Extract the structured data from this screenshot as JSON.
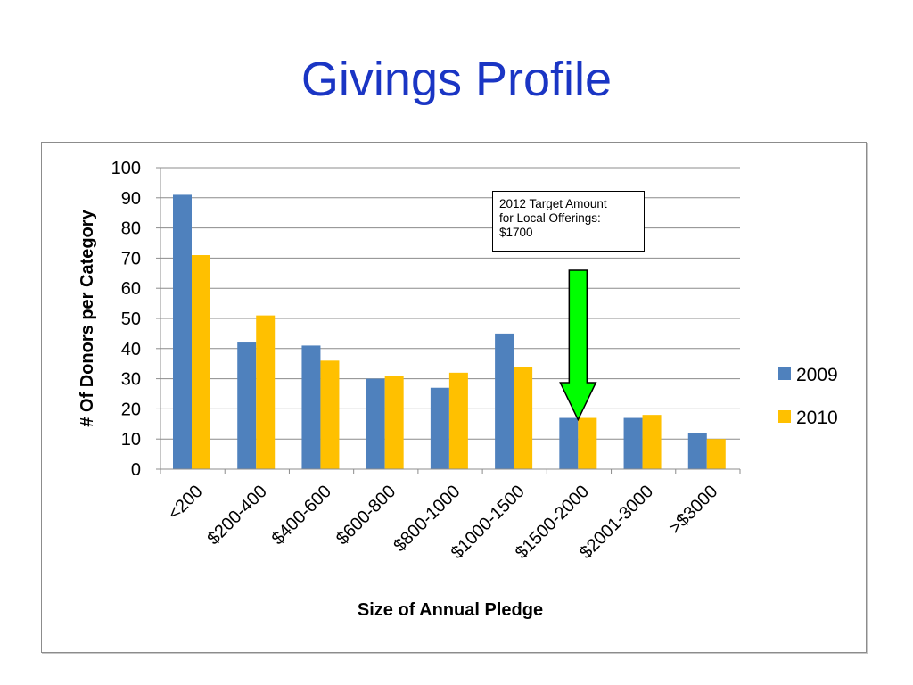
{
  "slide": {
    "title": "Givings Profile"
  },
  "callout": {
    "lines": [
      "2012 Target Amount",
      "for Local Offerings:",
      "$1700"
    ]
  },
  "colors": {
    "title": "#1a35c4",
    "series_2009": "#4f81bd",
    "series_2010": "#ffc000",
    "arrow_fill": "#00ff00",
    "gridline": "#8c8c8c"
  },
  "chart_data": {
    "type": "bar",
    "title": "",
    "xlabel": "Size of Annual Pledge",
    "ylabel": "# Of Donors  per Category",
    "ylim": [
      0,
      100
    ],
    "yticks": [
      0,
      10,
      20,
      30,
      40,
      50,
      60,
      70,
      80,
      90,
      100
    ],
    "grid": true,
    "legend_position": "right",
    "categories": [
      "<200",
      "$200-400",
      "$400-600",
      "$600-800",
      "$800-1000",
      "$1000-1500",
      "$1500-2000",
      "$2001-3000",
      ">$3000"
    ],
    "series": [
      {
        "name": "2009",
        "color": "#4f81bd",
        "values": [
          91,
          42,
          41,
          30,
          27,
          45,
          17,
          17,
          12
        ]
      },
      {
        "name": "2010",
        "color": "#ffc000",
        "values": [
          71,
          51,
          36,
          31,
          32,
          34,
          17,
          18,
          10
        ]
      }
    ],
    "annotation": {
      "text_lines": [
        "2012 Target Amount",
        "for Local Offerings:",
        "$1700"
      ],
      "points_to_category": "$1500-2000",
      "arrow_color": "#00ff00"
    }
  }
}
